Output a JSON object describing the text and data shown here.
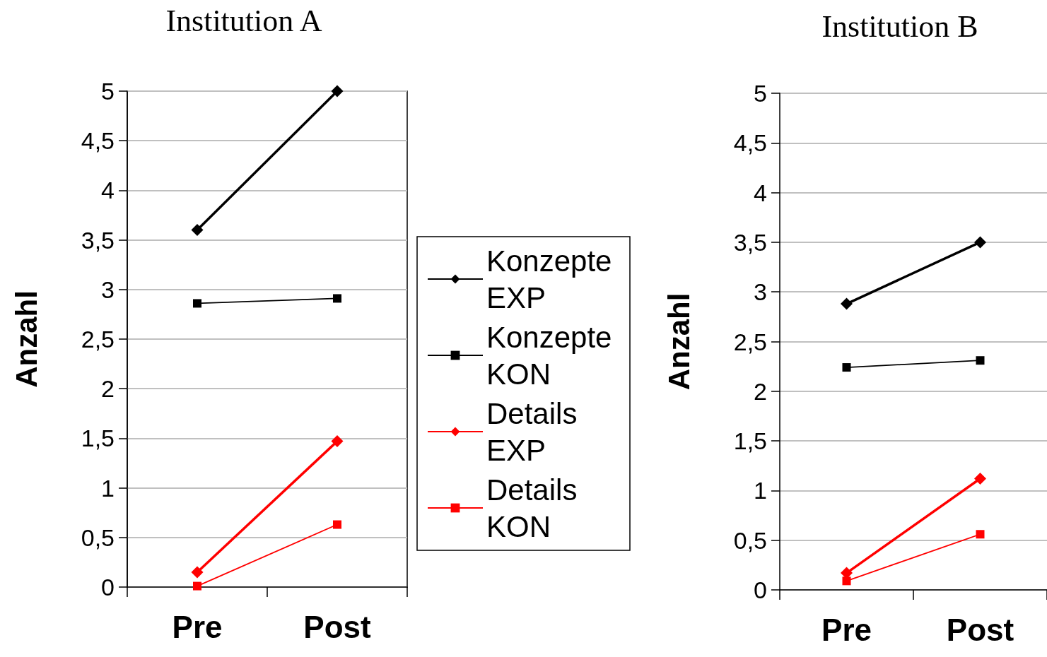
{
  "chart_data": [
    {
      "type": "line",
      "title": "Institution A",
      "ylabel": "Anzahl",
      "categories": [
        "Pre",
        "Post"
      ],
      "ylim": [
        0,
        5
      ],
      "yticks": [
        0,
        {
          "value": 0.5,
          "label": "0,5"
        },
        1,
        {
          "value": 1.5,
          "label": "1,5"
        },
        2,
        {
          "value": 2.5,
          "label": "2,5"
        },
        3,
        {
          "value": 3.5,
          "label": "3,5"
        },
        4,
        {
          "value": 4.5,
          "label": "4,5"
        },
        5
      ],
      "grid": "y",
      "legend": "right",
      "series": [
        {
          "name": "Konzepte EXP",
          "color": "#000000",
          "marker": "diamond",
          "values": [
            3.6,
            5
          ]
        },
        {
          "name": "Konzepte KON",
          "color": "#000000",
          "marker": "square",
          "values": [
            2.86,
            2.91
          ]
        },
        {
          "name": "Details EXP",
          "color": "#ff0000",
          "marker": "diamond",
          "values": [
            0.15,
            1.47
          ]
        },
        {
          "name": "Details KON",
          "color": "#ff0000",
          "marker": "square",
          "values": [
            0.01,
            0.63
          ]
        }
      ]
    },
    {
      "type": "line",
      "title": "Institution B",
      "ylabel": "Anzahl",
      "categories": [
        "Pre",
        "Post"
      ],
      "ylim": [
        0,
        5
      ],
      "yticks": [
        0,
        {
          "value": 0.5,
          "label": "0,5"
        },
        1,
        {
          "value": 1.5,
          "label": "1,5"
        },
        2,
        {
          "value": 2.5,
          "label": "2,5"
        },
        3,
        {
          "value": 3.5,
          "label": "3,5"
        },
        4,
        {
          "value": 4.5,
          "label": "4,5"
        },
        5
      ],
      "grid": "y",
      "legend": false,
      "series": [
        {
          "color": "#000000",
          "marker": "diamond",
          "values": [
            2.88,
            3.5
          ]
        },
        {
          "color": "#000000",
          "marker": "square",
          "values": [
            2.24,
            2.31
          ]
        },
        {
          "color": "#ff0000",
          "marker": "diamond",
          "values": [
            0.17,
            1.12
          ]
        },
        {
          "color": "#ff0000",
          "marker": "square",
          "values": [
            0.09,
            0.56
          ]
        }
      ]
    }
  ]
}
